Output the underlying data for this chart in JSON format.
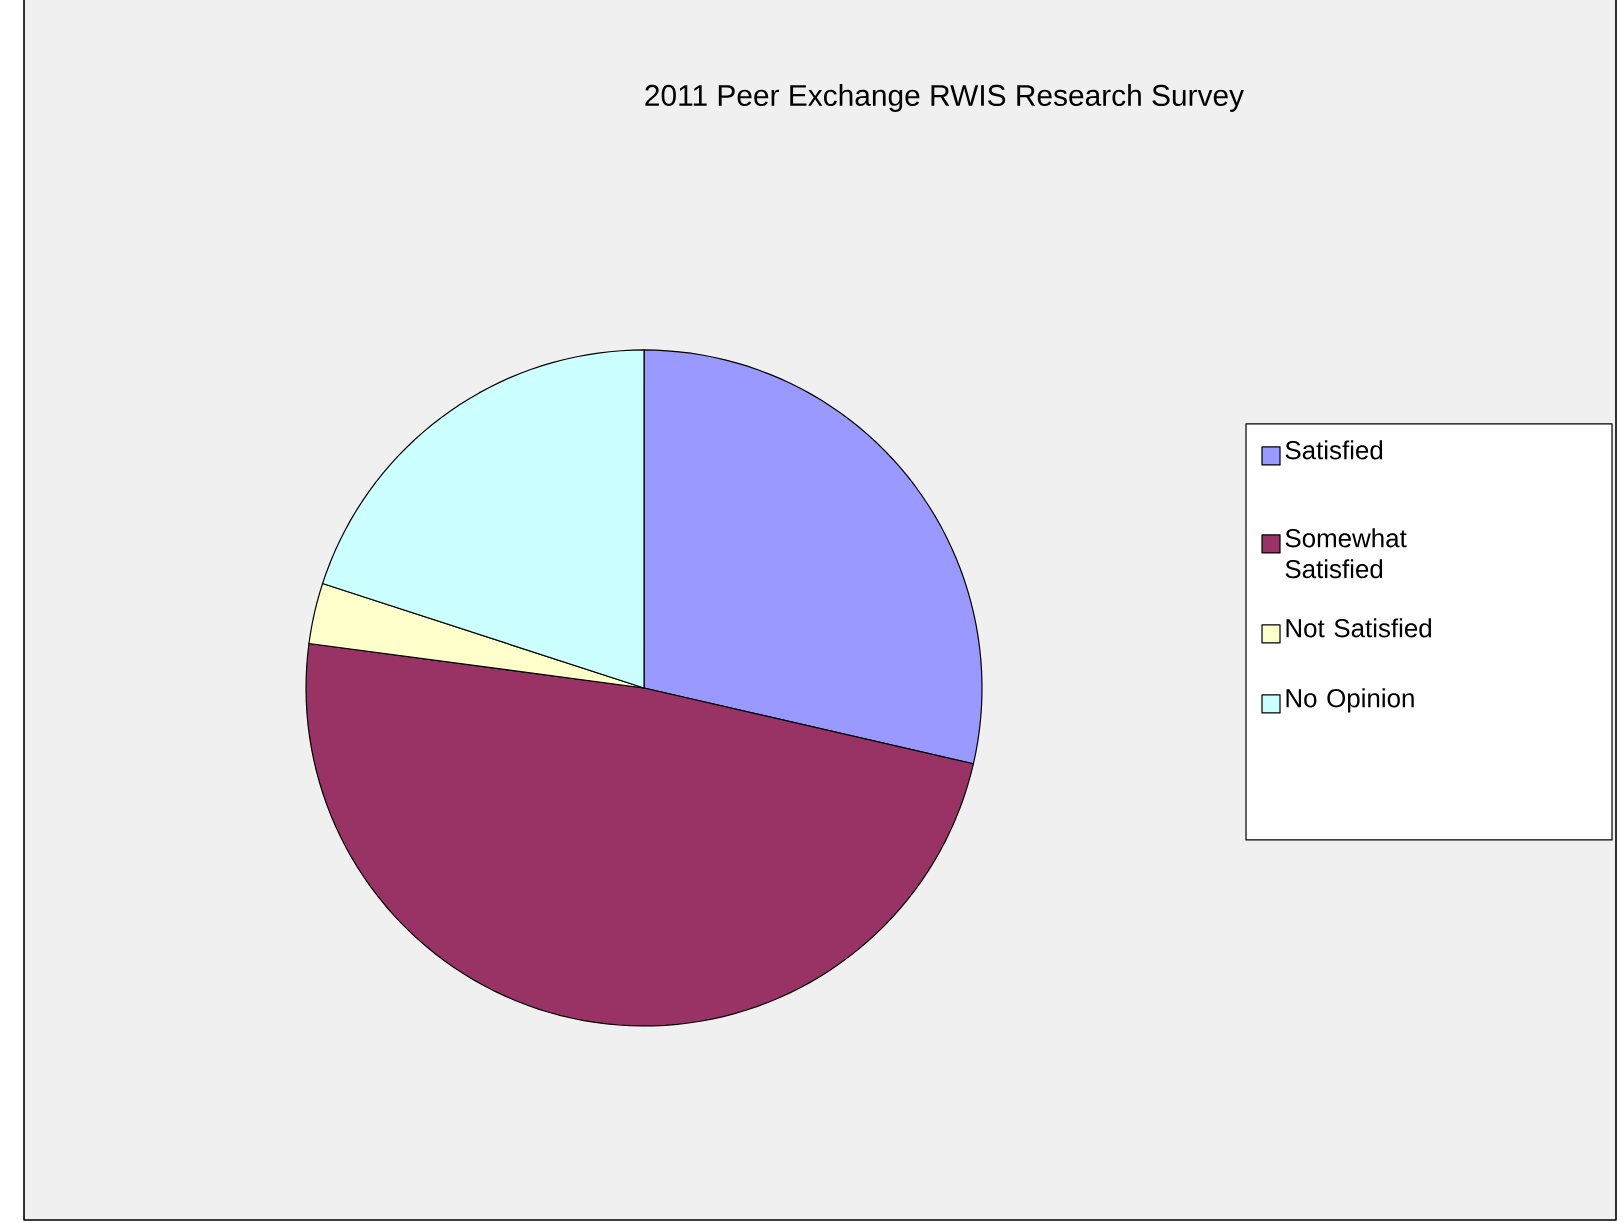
{
  "chart_data": {
    "type": "pie",
    "title": "2011 Peer Exchange RWIS Research Survey",
    "categories": [
      "Satisfied",
      "Somewhat Satisfied",
      "Not Satisfied",
      "No Opinion"
    ],
    "values": [
      28.6,
      48.5,
      2.9,
      20.0
    ],
    "colors": [
      "#9999ff",
      "#993366",
      "#ffffcc",
      "#ccffff"
    ],
    "legend": "right"
  }
}
